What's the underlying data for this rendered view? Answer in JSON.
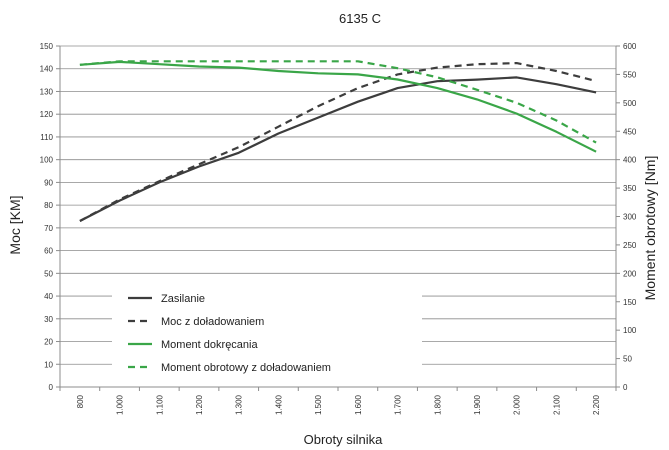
{
  "chart_data": {
    "type": "line",
    "title": "6135 C",
    "xlabel": "Obroty silnika",
    "ylabel_left": "Moc [KM]",
    "ylabel_right": "Moment obrotowy [Nm]",
    "x": [
      800,
      1000,
      1100,
      1200,
      1300,
      1400,
      1500,
      1600,
      1700,
      1800,
      1900,
      2000,
      2100,
      2200
    ],
    "x_tick_labels": [
      "800",
      "1.000",
      "1.100",
      "1.200",
      "1.300",
      "1.400",
      "1.500",
      "1.600",
      "1.700",
      "1.800",
      "1.900",
      "2.000",
      "2.100",
      "2.200"
    ],
    "ylim_left": [
      0,
      150
    ],
    "yticks_left": [
      0,
      10,
      20,
      30,
      40,
      50,
      60,
      70,
      80,
      90,
      100,
      110,
      120,
      130,
      140,
      150
    ],
    "ylim_right": [
      0,
      600
    ],
    "yticks_right": [
      0,
      50,
      100,
      150,
      200,
      250,
      300,
      350,
      400,
      450,
      500,
      550,
      600
    ],
    "grid": true,
    "legend_position": "bottom-left",
    "series": [
      {
        "name": "Zasilanie",
        "axis": "left",
        "color": "#3d3d3d",
        "dash": "solid",
        "values": [
          73,
          82,
          90,
          97,
          103,
          111.5,
          118.5,
          125.5,
          131.5,
          134.5,
          135.2,
          136.2,
          133.2,
          129.6
        ]
      },
      {
        "name": "Moc z doładowaniem",
        "axis": "left",
        "color": "#3d3d3d",
        "dash": "dashed",
        "values": [
          73,
          82.5,
          90.5,
          98,
          105.5,
          114.5,
          123.5,
          131.5,
          137.5,
          140.5,
          142,
          142.5,
          139,
          134.6
        ]
      },
      {
        "name": "Moment dokręcania",
        "axis": "right",
        "color": "#3aa648",
        "dash": "solid",
        "values": [
          567,
          572,
          568,
          564,
          562,
          556,
          552,
          550,
          541,
          526,
          506,
          481,
          449,
          414
        ]
      },
      {
        "name": "Moment obrotowy z doładowaniem",
        "axis": "right",
        "color": "#3aa648",
        "dash": "dashed",
        "values": [
          567,
          573,
          573,
          573,
          573,
          573,
          573,
          573,
          561,
          545,
          523,
          500,
          469,
          430
        ]
      }
    ]
  }
}
